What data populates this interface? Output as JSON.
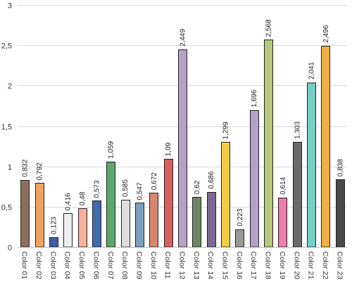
{
  "chart_data": {
    "type": "bar",
    "title": "",
    "xlabel": "",
    "ylabel": "",
    "ylim": [
      0,
      3
    ],
    "y_ticks": [
      "0",
      "0,5",
      "1",
      "1,5",
      "2",
      "2,5",
      "3"
    ],
    "y_tick_values": [
      0,
      0.5,
      1,
      1.5,
      2,
      2.5,
      3
    ],
    "grid": true,
    "legend": "none",
    "categories": [
      "Color 01",
      "Color 02",
      "Color 03",
      "Color 04",
      "Color 05",
      "Color 06",
      "Color 07",
      "Color 08",
      "Color 09",
      "Color 10",
      "Color 11",
      "Color 12",
      "Color 13",
      "Color 14",
      "Color 15",
      "Color 16",
      "Color 17",
      "Color 18",
      "Color 19",
      "Color 20",
      "Color 21",
      "Color 22",
      "Color 23"
    ],
    "values": [
      0.832,
      0.792,
      0.123,
      0.416,
      0.48,
      0.573,
      1.059,
      0.585,
      0.547,
      0.672,
      1.09,
      2.449,
      0.62,
      0.686,
      1.299,
      0.223,
      1.696,
      2.568,
      0.614,
      1.303,
      2.041,
      2.496,
      0.838
    ],
    "value_labels": [
      "0,832",
      "0,792",
      "0,123",
      "0,416",
      "0,48",
      "0,573",
      "1,059",
      "0,585",
      "0,547",
      "0,672",
      "1,09",
      "2,449",
      "0,62",
      "0,686",
      "1,299",
      "0,223",
      "1,696",
      "2,568",
      "0,614",
      "1,303",
      "2,041",
      "2,496",
      "0,838"
    ],
    "colors": [
      "#8d6e5a",
      "#f0a35e",
      "#3f5fa8",
      "#eeeeee",
      "#f6b09b",
      "#3f6bb0",
      "#5aa86a",
      "#dedede",
      "#7d9fbe",
      "#d98670",
      "#d9605f",
      "#b6a2c8",
      "#6f8660",
      "#7d6793",
      "#f2cc44",
      "#9a9a9a",
      "#b4a0cc",
      "#b4c878",
      "#f07aa9",
      "#6a6a6a",
      "#74cfc4",
      "#f0b044",
      "#4a4a4a"
    ]
  }
}
